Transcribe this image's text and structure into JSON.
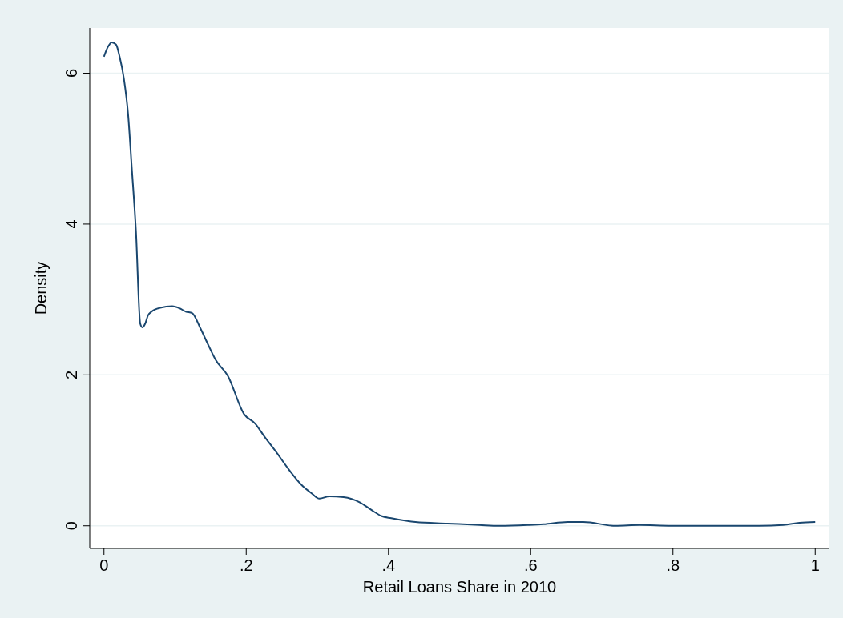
{
  "chart_data": {
    "type": "line",
    "xlabel": "Retail Loans Share in 2010",
    "ylabel": "Density",
    "x": [
      0,
      0.0056,
      0.011,
      0.017,
      0.022,
      0.028,
      0.034,
      0.039,
      0.045,
      0.051,
      0.054,
      0.058,
      0.062,
      0.067,
      0.079,
      0.096,
      0.107,
      0.115,
      0.124,
      0.135,
      0.146,
      0.157,
      0.174,
      0.197,
      0.213,
      0.225,
      0.242,
      0.258,
      0.279,
      0.292,
      0.303,
      0.317,
      0.337,
      0.36,
      0.376,
      0.39,
      0.404,
      0.438,
      0.483,
      0.528,
      0.556,
      0.596,
      0.618,
      0.652,
      0.674,
      0.719,
      0.753,
      0.798,
      0.921,
      0.955,
      0.978,
      1
    ],
    "series": [
      {
        "color": "#1a476f",
        "values": [
          6.22,
          6.35,
          6.41,
          6.38,
          6.22,
          5.93,
          5.45,
          4.76,
          3.9,
          2.68,
          2.63,
          2.68,
          2.79,
          2.84,
          2.89,
          2.91,
          2.88,
          2.84,
          2.82,
          2.63,
          2.41,
          2.2,
          1.99,
          1.48,
          1.35,
          1.19,
          0.98,
          0.77,
          0.53,
          0.43,
          0.36,
          0.39,
          0.38,
          0.31,
          0.21,
          0.13,
          0.1,
          0.05,
          0.03,
          0.01,
          0,
          0.01,
          0.02,
          0.05,
          0.05,
          0,
          0.01,
          0,
          0,
          0.01,
          0.04,
          0.05
        ]
      }
    ],
    "xlim": [
      -0.02,
      1.02
    ],
    "ylim": [
      -0.3,
      6.6
    ],
    "xticks": [
      0,
      {
        "value": 0.2,
        "label": ".2"
      },
      {
        "value": 0.4,
        "label": ".4"
      },
      {
        "value": 0.6,
        "label": ".6"
      },
      {
        "value": 0.8,
        "label": ".8"
      },
      1
    ],
    "yticks": [
      0,
      2,
      4,
      6
    ],
    "grid": "y",
    "line_style": "solid",
    "marker": "none"
  }
}
